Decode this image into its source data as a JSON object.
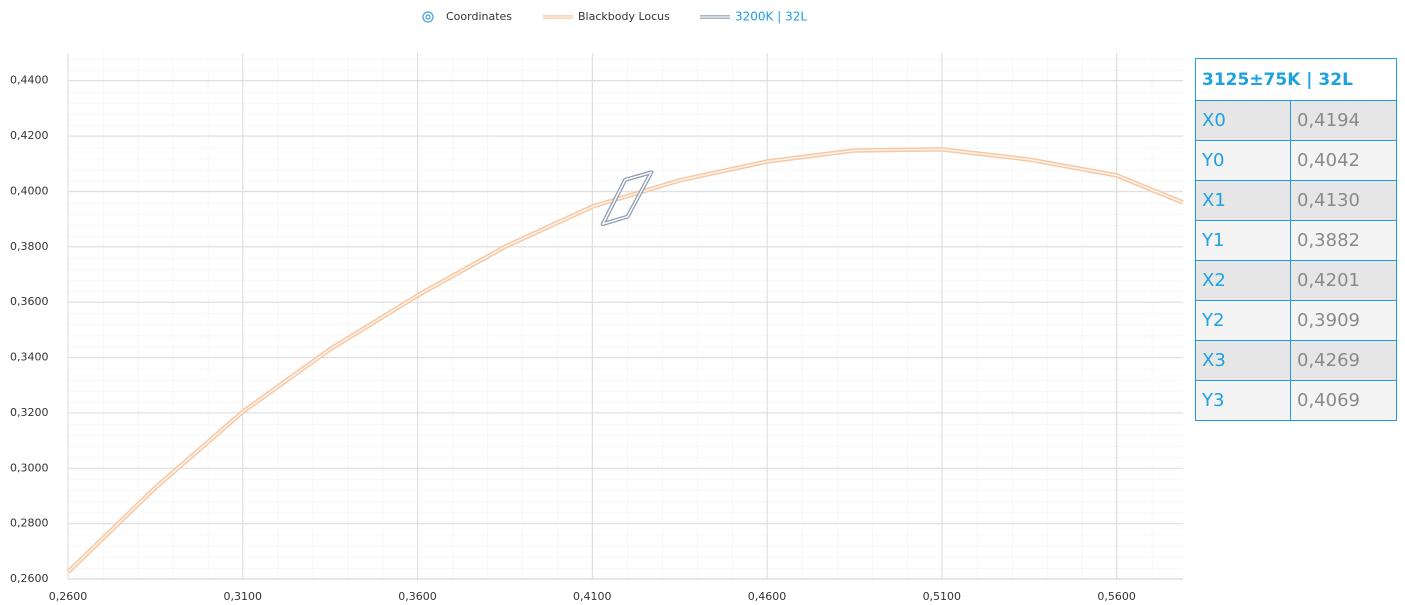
{
  "chart_data": {
    "type": "line",
    "xlim": [
      0.26,
      0.579
    ],
    "ylim": [
      0.26,
      0.45
    ],
    "xticks": [
      {
        "value": 0.26,
        "label": "0,2600"
      },
      {
        "value": 0.31,
        "label": "0,3100"
      },
      {
        "value": 0.36,
        "label": "0,3600"
      },
      {
        "value": 0.41,
        "label": "0,4100"
      },
      {
        "value": 0.46,
        "label": "0,4600"
      },
      {
        "value": 0.51,
        "label": "0,5100"
      },
      {
        "value": 0.56,
        "label": "0,5600"
      }
    ],
    "yticks": [
      {
        "value": 0.26,
        "label": "0,2600"
      },
      {
        "value": 0.28,
        "label": "0,2800"
      },
      {
        "value": 0.3,
        "label": "0,3000"
      },
      {
        "value": 0.32,
        "label": "0,3200"
      },
      {
        "value": 0.34,
        "label": "0,3400"
      },
      {
        "value": 0.36,
        "label": "0,3600"
      },
      {
        "value": 0.38,
        "label": "0,3800"
      },
      {
        "value": 0.4,
        "label": "0,4000"
      },
      {
        "value": 0.42,
        "label": "0,4200"
      },
      {
        "value": 0.44,
        "label": "0,4400"
      }
    ],
    "grid": true,
    "series": [
      {
        "name": "Coordinates",
        "color": "#4aa3df"
      },
      {
        "name": "Blackbody Locus",
        "color": "#f6c9a6",
        "x": [
          0.26,
          0.285,
          0.31,
          0.335,
          0.36,
          0.385,
          0.41,
          0.435,
          0.46,
          0.485,
          0.51,
          0.535,
          0.56,
          0.579
        ],
        "values": [
          0.2625,
          0.293,
          0.3204,
          0.343,
          0.3624,
          0.38,
          0.3945,
          0.404,
          0.4108,
          0.4148,
          0.4152,
          0.4115,
          0.4058,
          0.396
        ]
      },
      {
        "name": "3200K | 32L",
        "color": "#8d9db3",
        "x": [
          0.4194,
          0.413,
          0.4201,
          0.4269
        ],
        "values": [
          0.4042,
          0.3882,
          0.3909,
          0.4069
        ]
      }
    ]
  },
  "table": {
    "title": "3125±75K | 32L",
    "rows": [
      [
        "X0",
        "0,4194"
      ],
      [
        "Y0",
        "0,4042"
      ],
      [
        "X1",
        "0,4130"
      ],
      [
        "Y1",
        "0,3882"
      ],
      [
        "X2",
        "0,4201"
      ],
      [
        "Y2",
        "0,3909"
      ],
      [
        "X3",
        "0,4269"
      ],
      [
        "Y3",
        "0,4069"
      ]
    ]
  }
}
